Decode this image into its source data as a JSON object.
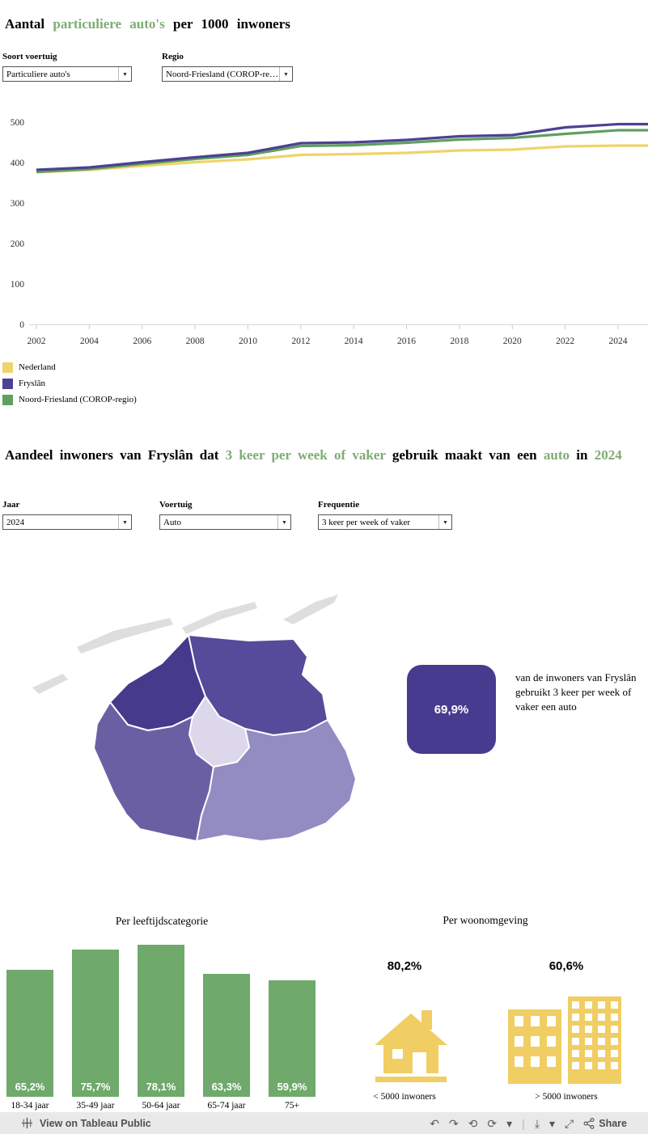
{
  "colors": {
    "green_accent": "#7EAC74",
    "yellow_icon": "#F0CE63",
    "toolbar_bg": "#E9E9E9"
  },
  "titles": {
    "title1": [
      {
        "t": "Aantal ",
        "h": false
      },
      {
        "t": "particuliere auto's",
        "h": true
      },
      {
        "t": " per 1000 inwoners",
        "h": false
      }
    ],
    "title2": [
      {
        "t": "Aandeel inwoners van Fryslân dat ",
        "h": false
      },
      {
        "t": "3 keer per week of vaker",
        "h": true
      },
      {
        "t": " gebruik maakt van een ",
        "h": false
      },
      {
        "t": "auto",
        "h": true
      },
      {
        "t": " in ",
        "h": false
      },
      {
        "t": "2024",
        "h": true
      }
    ]
  },
  "filters_top": [
    {
      "label": "Soort voertuig",
      "value": "Particuliere auto's"
    },
    {
      "label": "Regio",
      "value": "Noord-Friesland (COROP-re…"
    }
  ],
  "filters_bottom": [
    {
      "label": "Jaar",
      "value": "2024"
    },
    {
      "label": "Voertuig",
      "value": "Auto"
    },
    {
      "label": "Frequentie",
      "value": "3 keer per week of vaker"
    }
  ],
  "chart_data": [
    {
      "type": "line",
      "title": "Aantal particuliere auto's per 1000 inwoners",
      "x": [
        2002,
        2004,
        2006,
        2008,
        2010,
        2012,
        2014,
        2016,
        2018,
        2020,
        2022,
        2024
      ],
      "ylim": [
        0,
        500
      ],
      "yticks": [
        0,
        100,
        200,
        300,
        400,
        500
      ],
      "grid": false,
      "legend_position": "bottom-left",
      "series": [
        {
          "name": "Nederland",
          "color": "#EFD36C",
          "values": [
            376,
            382,
            392,
            401,
            408,
            419,
            421,
            424,
            430,
            432,
            440,
            442
          ]
        },
        {
          "name": "Fryslân",
          "color": "#4C4193",
          "values": [
            382,
            388,
            401,
            413,
            424,
            448,
            450,
            456,
            465,
            468,
            487,
            495
          ]
        },
        {
          "name": "Noord-Friesland (COROP-regio)",
          "color": "#5FA05F",
          "values": [
            377,
            384,
            397,
            409,
            419,
            441,
            443,
            449,
            457,
            461,
            471,
            480
          ]
        }
      ]
    },
    {
      "type": "bar",
      "title": "Per leeftijdscategorie",
      "categories": [
        "18-34 jaar",
        "35-49 jaar",
        "50-64 jaar",
        "65-74 jaar",
        "75+"
      ],
      "values": [
        65.2,
        75.7,
        78.1,
        63.3,
        59.9
      ],
      "labels": [
        "65,2%",
        "75,7%",
        "78,1%",
        "63,3%",
        "59,9%"
      ],
      "bar_color": "#6FA96B",
      "value_label_position": "inside-bottom"
    },
    {
      "type": "pictogram",
      "title": "Per woonomgeving",
      "icon_color": "#F0CE63",
      "items": [
        {
          "icon": "house-icon",
          "value": "80,2%",
          "label": "< 5000 inwoners"
        },
        {
          "icon": "buildings-icon",
          "value": "60,6%",
          "label": "> 5000 inwoners"
        }
      ]
    },
    {
      "type": "map",
      "title": "Fryslân choropleth",
      "island_color": "#DEDEDE",
      "regions": [
        {
          "id": "region-northeast",
          "color": "#564A9A"
        },
        {
          "id": "region-northwest",
          "color": "#453A8C"
        },
        {
          "id": "region-center",
          "color": "#DCD7EA"
        },
        {
          "id": "region-southwest",
          "color": "#6B5FA4"
        },
        {
          "id": "region-southeast",
          "color": "#938CC2"
        }
      ]
    }
  ],
  "kpi": {
    "value": "69,9%",
    "text": "van de inwoners van Fryslân gebruikt 3 keer per week of vaker een auto",
    "color": "#473B8F"
  },
  "toolbar": {
    "view_label": "View on Tableau Public",
    "share_label": "Share",
    "icons": [
      {
        "name": "undo-icon",
        "glyph": "↶"
      },
      {
        "name": "redo-icon",
        "glyph": "↷"
      },
      {
        "name": "revert-icon",
        "glyph": "⟲"
      },
      {
        "name": "refresh-icon",
        "glyph": "⟳"
      },
      {
        "name": "caret-down-icon",
        "glyph": "▾"
      },
      {
        "name": "separator",
        "glyph": "|"
      },
      {
        "name": "download-icon",
        "glyph": "⤓"
      },
      {
        "name": "caret-down-icon",
        "glyph": "▾"
      },
      {
        "name": "fullscreen-icon",
        "glyph": "⤢"
      }
    ]
  }
}
